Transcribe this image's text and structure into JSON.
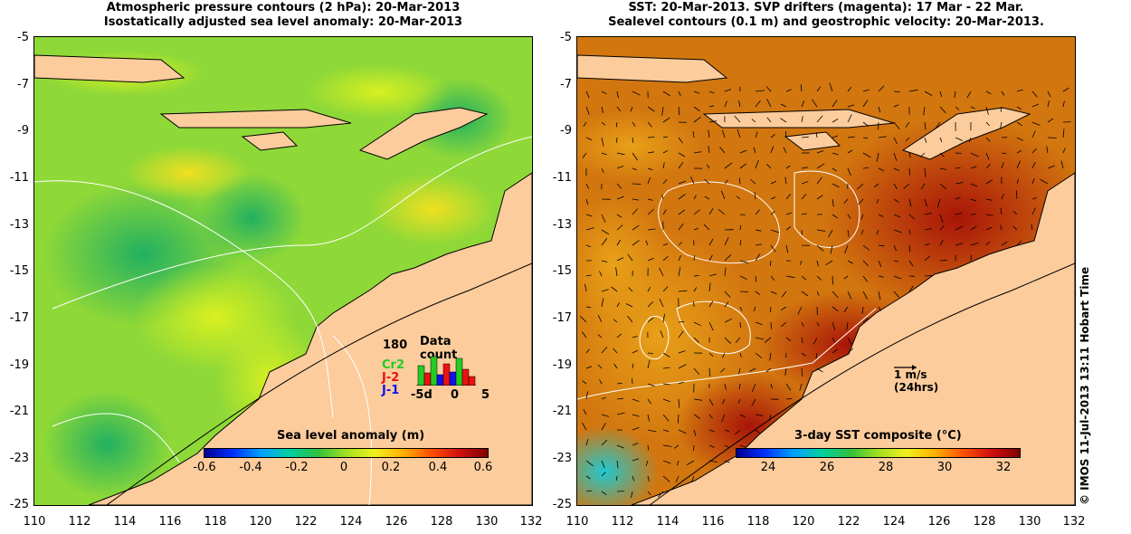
{
  "left_panel": {
    "title_line1": "Atmospheric pressure contours (2 hPa): 20-Mar-2013",
    "title_line2": "Isostatically adjusted sea level anomaly: 20-Mar-2013",
    "colorbar_label": "Sea level anomaly (m)",
    "colorbar_ticks": [
      "-0.6",
      "-0.4",
      "-0.2",
      "0",
      "0.2",
      "0.4",
      "0.6"
    ],
    "histogram": {
      "title": "Data count",
      "max_label": "180",
      "x_ticks": [
        "-5d",
        "0",
        "5"
      ],
      "legend": [
        {
          "label": "Cr2",
          "color": "#22cc22"
        },
        {
          "label": "J-2",
          "color": "#ee1111"
        },
        {
          "label": "J-1",
          "color": "#1111ee"
        }
      ]
    }
  },
  "right_panel": {
    "title_line1": "SST: 20-Mar-2013. SVP drifters (magenta): 17 Mar - 22 Mar.",
    "title_line2": "Sealevel contours (0.1 m) and geostrophic velocity: 20-Mar-2013.",
    "colorbar_label": "3-day SST composite (°C)",
    "colorbar_ticks": [
      "24",
      "26",
      "28",
      "30",
      "32"
    ],
    "velocity_scale": "1 m/s",
    "velocity_scale_note": "(24hrs)"
  },
  "axes": {
    "y_ticks": [
      "-5",
      "-7",
      "-9",
      "-11",
      "-13",
      "-15",
      "-17",
      "-19",
      "-21",
      "-23",
      "-25"
    ],
    "x_ticks": [
      "110",
      "112",
      "114",
      "116",
      "118",
      "120",
      "122",
      "124",
      "126",
      "128",
      "130",
      "132"
    ]
  },
  "credit": "© IMOS 11-Jul-2013 13:11 Hobart Time",
  "colors": {
    "land": "#fccc9c",
    "sla_base": "#8fd838",
    "sst_base": "#d27a12",
    "warm_coast": "#b51c0a"
  }
}
